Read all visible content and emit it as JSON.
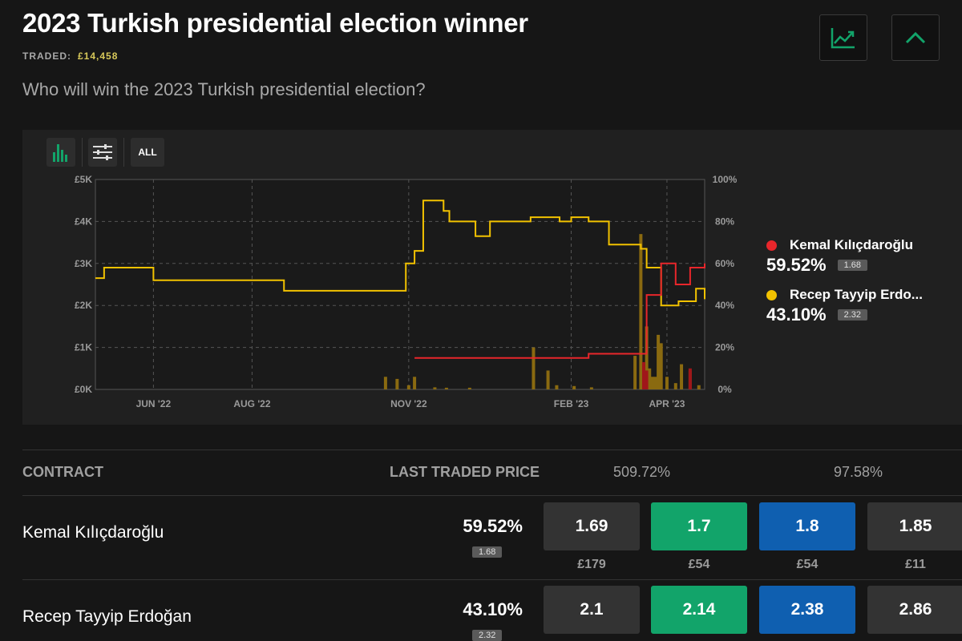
{
  "header": {
    "title": "2023 Turkish presidential election winner",
    "traded_label": "TRADED:",
    "traded_amount": "£14,458",
    "question": "Who will win the 2023 Turkish presidential election?"
  },
  "icons": {
    "chart_toggle": "line-chart-icon",
    "collapse": "chevron-up-icon",
    "bars": "bar-chart-icon",
    "filters": "sliders-icon"
  },
  "toolbar": {
    "range_label": "ALL"
  },
  "colors": {
    "kemal": "#e8262b",
    "erdogan": "#f2c200",
    "volume": "#8a6a10",
    "green": "#12a46a",
    "blue": "#0f5fb0"
  },
  "legend": [
    {
      "name": "Kemal Kılıçdaroğlu",
      "pct": "59.52%",
      "odds": "1.68"
    },
    {
      "name": "Recep Tayyip Erdo...",
      "pct": "43.10%",
      "odds": "2.32"
    }
  ],
  "chart_data": {
    "type": "line",
    "x_ticks": [
      "JUN '22",
      "AUG '22",
      "NOV '22",
      "FEB '23",
      "APR '23"
    ],
    "y_left_ticks": [
      "£0K",
      "£1K",
      "£2K",
      "£3K",
      "£4K",
      "£5K"
    ],
    "y_right_ticks": [
      "0%",
      "20%",
      "40%",
      "60%",
      "80%",
      "100%"
    ],
    "ylim_left": [
      0,
      5000
    ],
    "ylim_right": [
      0,
      100
    ],
    "grid": true,
    "legend_position": "right",
    "series": [
      {
        "name": "Recep Tayyip Erdoğan",
        "x": [
          0,
          3,
          8,
          18,
          20,
          35,
          62,
          65,
          70,
          90,
          100,
          104,
          107,
          110,
          113,
          120,
          122,
          126,
          131,
          136,
          142,
          150,
          155,
          160,
          164,
          170,
          177,
          185,
          188,
          190,
          195,
          201,
          205,
          207,
          210
        ],
        "y": [
          53,
          58,
          58,
          58,
          52,
          52,
          52,
          47,
          47,
          47,
          47,
          47,
          60,
          66,
          90,
          85,
          80,
          80,
          73,
          80,
          80,
          82,
          82,
          80,
          82,
          80,
          69,
          69,
          67,
          58,
          40,
          42,
          42,
          48,
          43
        ]
      },
      {
        "name": "Kemal Kılıçdaroğlu",
        "x": [
          110,
          130,
          150,
          170,
          185,
          190,
          195,
          200,
          205,
          207,
          210
        ],
        "y": [
          15,
          15,
          15,
          17,
          17,
          45,
          60,
          50,
          58,
          58,
          60
        ]
      },
      {
        "name": "Volume",
        "x": [
          100,
          104,
          108,
          110,
          117,
          121,
          129,
          151,
          156,
          159,
          165,
          171,
          186,
          188,
          189,
          190,
          191,
          192,
          193,
          194,
          195,
          197,
          200,
          202,
          205,
          208
        ],
        "y": [
          300,
          250,
          100,
          300,
          50,
          40,
          40,
          1000,
          450,
          100,
          80,
          50,
          800,
          3700,
          600,
          1500,
          500,
          300,
          300,
          1300,
          1100,
          300,
          150,
          600,
          450,
          100
        ]
      }
    ]
  },
  "table": {
    "col_contract": "CONTRACT",
    "col_ltp": "LAST TRADED PRICE",
    "col_back_pct": "509.72%",
    "col_lay_pct": "97.58%",
    "rows": [
      {
        "name": "Kemal Kılıçdaroğlu",
        "ltp": "59.52%",
        "ltp_odds": "1.68",
        "prices": [
          "1.69",
          "1.7",
          "1.8",
          "1.85"
        ],
        "volumes": [
          "£179",
          "£54",
          "£54",
          "£11"
        ]
      },
      {
        "name": "Recep Tayyip Erdoğan",
        "ltp": "43.10%",
        "ltp_odds": "2.32",
        "prices": [
          "2.1",
          "2.14",
          "2.38",
          "2.86"
        ],
        "volumes": [
          "",
          "",
          "",
          ""
        ]
      }
    ]
  }
}
